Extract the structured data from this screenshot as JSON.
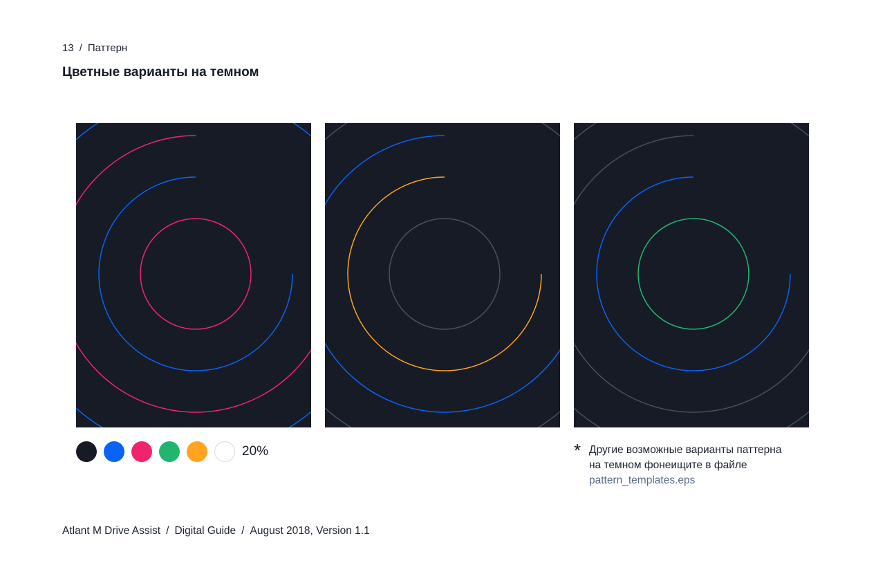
{
  "breadcrumb": {
    "page_number": "13",
    "section": "Паттерн"
  },
  "title": "Цветные варианты на темном",
  "colors": {
    "background": "#161b26",
    "blue": "#0b63f6",
    "pink": "#f0246e",
    "green": "#21b66d",
    "orange": "#ffa321",
    "white_20": "#4a505b"
  },
  "panels": [
    {
      "name": "pink-blue",
      "rings": [
        "pink",
        "blue",
        "pink",
        "blue"
      ]
    },
    {
      "name": "gray-orange-blue",
      "rings": [
        "white_20",
        "orange",
        "blue",
        "white_20"
      ]
    },
    {
      "name": "green-blue-gray",
      "rings": [
        "green",
        "blue",
        "white_20",
        "white_20"
      ]
    }
  ],
  "palette": {
    "swatches": [
      "#161b26",
      "#0b63f6",
      "#f0246e",
      "#21b66d",
      "#ffa321",
      "#ffffff"
    ],
    "opacity_label": "20%"
  },
  "note": {
    "star": "*",
    "text": "Другие возможные варианты паттерна на темном фонеищите в файле ",
    "link": "pattern_templates.eps"
  },
  "footer": {
    "brand": "Atlant M Drive Assist",
    "doc": "Digital Guide",
    "version": "August 2018, Version 1.1"
  }
}
